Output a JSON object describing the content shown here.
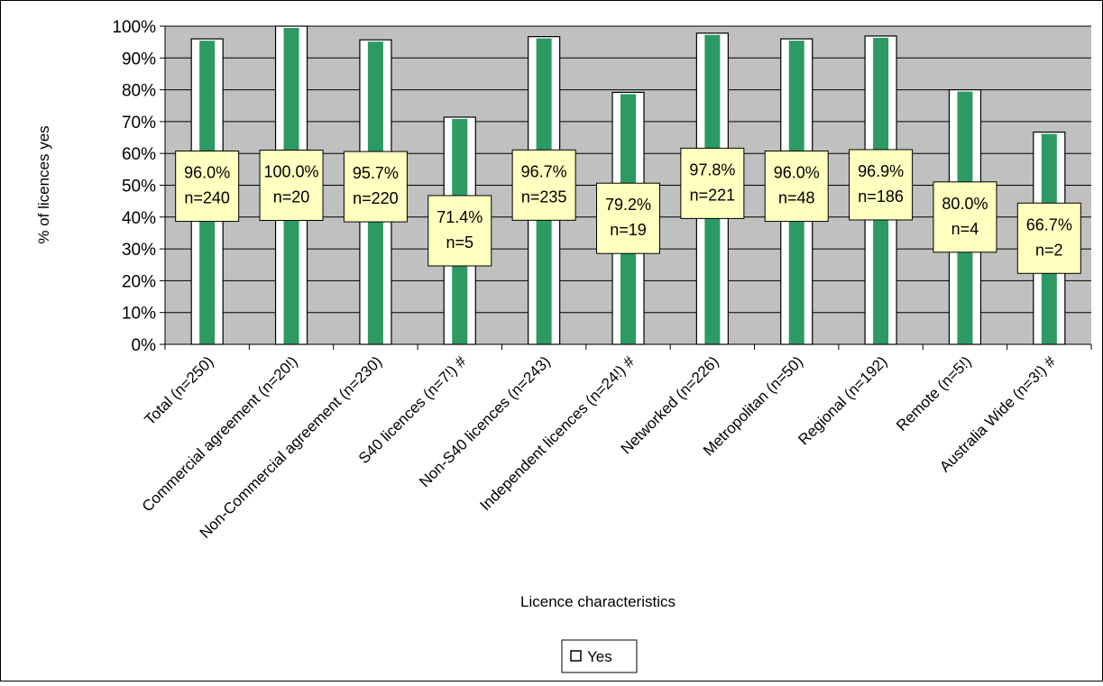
{
  "chart_data": {
    "type": "bar",
    "xlabel": "Licence characteristics",
    "ylabel": "% of licences yes",
    "ylim": [
      0,
      100
    ],
    "yticks": [
      0,
      10,
      20,
      30,
      40,
      50,
      60,
      70,
      80,
      90,
      100
    ],
    "ytick_labels": [
      "0%",
      "10%",
      "20%",
      "30%",
      "40%",
      "50%",
      "60%",
      "70%",
      "80%",
      "90%",
      "100%"
    ],
    "grid": true,
    "legend_position": "bottom",
    "categories": [
      "Total (n=250)",
      "Commercial agreement (n=20!)",
      "Non-Commercial agreement (n=230)",
      "S40 licences (n=7!) #",
      "Non-S40 licences (n=243)",
      "Independent licences (n=24!) #",
      "Networked (n=226)",
      "Metropolitan (n=50)",
      "Regional (n=192)",
      "Remote (n=5!)",
      "Australia Wide (n=3!) #"
    ],
    "series": [
      {
        "name": "Yes",
        "values": [
          96.0,
          100.0,
          95.7,
          71.4,
          96.7,
          79.2,
          97.8,
          96.0,
          96.9,
          80.0,
          66.7
        ],
        "labels": [
          [
            "96.0%",
            "n=240"
          ],
          [
            "100.0%",
            "n=20"
          ],
          [
            "95.7%",
            "n=220"
          ],
          [
            "71.4%",
            "n=5"
          ],
          [
            "96.7%",
            "n=235"
          ],
          [
            "79.2%",
            "n=19"
          ],
          [
            "97.8%",
            "n=221"
          ],
          [
            "96.0%",
            "n=48"
          ],
          [
            "96.9%",
            "n=186"
          ],
          [
            "80.0%",
            "n=4"
          ],
          [
            "66.7%",
            "n=2"
          ]
        ]
      }
    ]
  },
  "colors": {
    "plot_background": "#c0c0c0",
    "bar_fill": "#2e9a63",
    "bar_outline_fill": "#ffffff",
    "label_box": "#ffffc0",
    "axis": "#000000"
  }
}
